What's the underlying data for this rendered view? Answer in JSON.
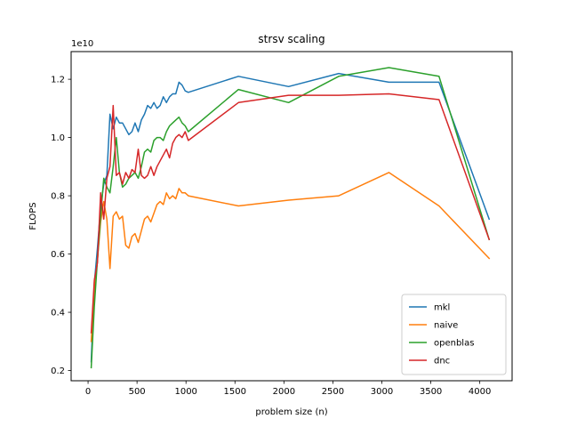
{
  "chart_data": {
    "type": "line",
    "title": "strsv scaling",
    "xlabel": "problem size (n)",
    "ylabel": "FLOPS",
    "y_offset_text": "1e10",
    "xlim": [
      -173,
      4330
    ],
    "ylim": [
      0.165,
      1.295
    ],
    "xticks": [
      0,
      500,
      1000,
      1500,
      2000,
      2500,
      3000,
      3500,
      4000
    ],
    "yticks": [
      0.2,
      0.4,
      0.6,
      0.8,
      1.0,
      1.2
    ],
    "ytick_labels": [
      "0.2",
      "0.4",
      "0.6",
      "0.8",
      "1.0",
      "1.2"
    ],
    "legend_position": "lower-right",
    "grid": false,
    "series": [
      {
        "name": "mkl",
        "color": "#1f77b4",
        "x": [
          32,
          64,
          96,
          128,
          160,
          192,
          224,
          256,
          288,
          320,
          352,
          384,
          416,
          448,
          480,
          512,
          544,
          576,
          608,
          640,
          672,
          704,
          736,
          768,
          800,
          832,
          864,
          896,
          928,
          960,
          992,
          1024,
          1536,
          2048,
          2560,
          3072,
          3584,
          4096
        ],
        "y": [
          0.23,
          0.5,
          0.62,
          0.76,
          0.84,
          0.87,
          1.08,
          1.03,
          1.07,
          1.05,
          1.05,
          1.03,
          1.01,
          1.02,
          1.05,
          1.02,
          1.06,
          1.08,
          1.11,
          1.1,
          1.12,
          1.1,
          1.11,
          1.14,
          1.12,
          1.14,
          1.15,
          1.15,
          1.19,
          1.18,
          1.16,
          1.155,
          1.21,
          1.175,
          1.22,
          1.19,
          1.19,
          0.72
        ]
      },
      {
        "name": "naive",
        "color": "#ff7f0e",
        "x": [
          32,
          64,
          96,
          128,
          160,
          192,
          224,
          256,
          288,
          320,
          352,
          384,
          416,
          448,
          480,
          512,
          544,
          576,
          608,
          640,
          672,
          704,
          736,
          768,
          800,
          832,
          864,
          896,
          928,
          960,
          992,
          1024,
          1536,
          2048,
          2560,
          3072,
          3584,
          4096
        ],
        "y": [
          0.3,
          0.48,
          0.58,
          0.71,
          0.78,
          0.72,
          0.55,
          0.73,
          0.745,
          0.72,
          0.73,
          0.63,
          0.62,
          0.66,
          0.67,
          0.64,
          0.68,
          0.72,
          0.73,
          0.71,
          0.74,
          0.77,
          0.78,
          0.77,
          0.81,
          0.79,
          0.8,
          0.79,
          0.825,
          0.81,
          0.81,
          0.8,
          0.765,
          0.785,
          0.8,
          0.88,
          0.765,
          0.585
        ]
      },
      {
        "name": "openblas",
        "color": "#2ca02c",
        "x": [
          32,
          64,
          96,
          128,
          160,
          192,
          224,
          256,
          288,
          320,
          352,
          384,
          416,
          448,
          480,
          512,
          544,
          576,
          608,
          640,
          672,
          704,
          736,
          768,
          800,
          832,
          864,
          896,
          928,
          960,
          992,
          1024,
          1536,
          2048,
          2560,
          3072,
          3584,
          4096
        ],
        "y": [
          0.21,
          0.42,
          0.58,
          0.73,
          0.86,
          0.83,
          0.81,
          0.9,
          1.0,
          0.88,
          0.83,
          0.84,
          0.86,
          0.87,
          0.88,
          0.86,
          0.9,
          0.95,
          0.96,
          0.95,
          0.99,
          1.0,
          1.0,
          0.99,
          1.02,
          1.04,
          1.05,
          1.06,
          1.07,
          1.05,
          1.04,
          1.02,
          1.165,
          1.12,
          1.21,
          1.24,
          1.21,
          0.65
        ]
      },
      {
        "name": "dnc",
        "color": "#d62728",
        "x": [
          32,
          64,
          96,
          128,
          160,
          192,
          224,
          256,
          288,
          320,
          352,
          384,
          416,
          448,
          480,
          512,
          544,
          576,
          608,
          640,
          672,
          704,
          736,
          768,
          800,
          832,
          864,
          896,
          928,
          960,
          992,
          1024,
          1536,
          2048,
          2560,
          3072,
          3584,
          4096
        ],
        "y": [
          0.33,
          0.51,
          0.57,
          0.81,
          0.72,
          0.86,
          0.9,
          1.11,
          0.87,
          0.88,
          0.84,
          0.88,
          0.86,
          0.89,
          0.88,
          0.96,
          0.87,
          0.86,
          0.87,
          0.9,
          0.87,
          0.9,
          0.92,
          0.94,
          0.96,
          0.93,
          0.98,
          1.0,
          1.01,
          1.0,
          1.02,
          0.99,
          1.12,
          1.145,
          1.145,
          1.15,
          1.13,
          0.65
        ]
      }
    ]
  }
}
